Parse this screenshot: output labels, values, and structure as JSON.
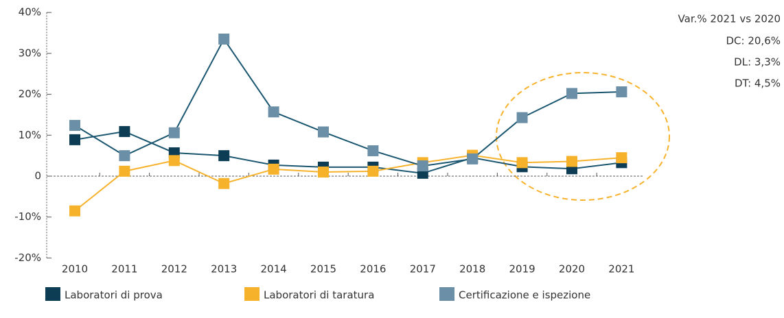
{
  "chart_data": {
    "type": "line",
    "categories": [
      "2010",
      "2011",
      "2012",
      "2013",
      "2014",
      "2015",
      "2016",
      "2017",
      "2018",
      "2019",
      "2020",
      "2021"
    ],
    "series": [
      {
        "name": "Laboratori di prova",
        "color": "#0d3d55",
        "line_color": "#1a5670",
        "values": [
          8.9,
          10.9,
          5.7,
          5.0,
          2.7,
          2.2,
          2.2,
          0.7,
          4.5,
          2.3,
          1.8,
          3.3
        ]
      },
      {
        "name": "Laboratori di taratura",
        "color": "#f7b22c",
        "line_color": "#f7b22c",
        "values": [
          -8.5,
          1.2,
          3.8,
          -1.8,
          1.7,
          1.0,
          1.2,
          3.3,
          5.1,
          3.3,
          3.6,
          4.5
        ]
      },
      {
        "name": "Certificazione e ispezione",
        "color": "#6a8fa6",
        "line_color": "#1a5670",
        "values": [
          12.4,
          5.0,
          10.6,
          33.5,
          15.7,
          10.8,
          6.2,
          2.5,
          4.2,
          14.3,
          20.2,
          20.6
        ]
      }
    ],
    "ylim": [
      -20,
      40
    ],
    "yticks": [
      {
        "value": -20,
        "label": "-20%"
      },
      {
        "value": -10,
        "label": "-10%"
      },
      0,
      {
        "value": 10,
        "label": "10%"
      },
      {
        "value": 20,
        "label": "20%"
      },
      {
        "value": 30,
        "label": "30%"
      },
      {
        "value": 40,
        "label": "40%"
      }
    ],
    "annotations": [
      "Var.% 2021 vs 2020",
      "DC: 20,6%",
      "DL: 3,3%",
      "DT: 4,5%"
    ]
  }
}
